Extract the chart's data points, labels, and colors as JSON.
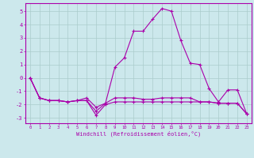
{
  "xlabel": "Windchill (Refroidissement éolien,°C)",
  "background_color": "#cce8ec",
  "grid_color": "#aacccc",
  "line_color": "#aa00aa",
  "x_ticks": [
    0,
    1,
    2,
    3,
    4,
    5,
    6,
    7,
    8,
    9,
    10,
    11,
    12,
    13,
    14,
    15,
    16,
    17,
    18,
    19,
    20,
    21,
    22,
    23
  ],
  "y_ticks": [
    -3,
    -2,
    -1,
    0,
    1,
    2,
    3,
    4,
    5
  ],
  "ylim": [
    -3.4,
    5.6
  ],
  "xlim": [
    -0.5,
    23.5
  ],
  "series": [
    [
      0.0,
      -1.5,
      -1.7,
      -1.7,
      -1.8,
      -1.7,
      -1.7,
      -2.5,
      -1.9,
      0.8,
      1.5,
      3.5,
      3.5,
      4.4,
      5.2,
      5.0,
      2.8,
      1.1,
      1.0,
      -0.8,
      -1.8,
      -0.9,
      -0.9,
      -2.7
    ],
    [
      0.0,
      -1.5,
      -1.7,
      -1.7,
      -1.8,
      -1.7,
      -1.5,
      -2.2,
      -1.9,
      -1.5,
      -1.5,
      -1.5,
      -1.6,
      -1.6,
      -1.5,
      -1.5,
      -1.5,
      -1.5,
      -1.8,
      -1.8,
      -1.9,
      -1.9,
      -1.9,
      -2.7
    ],
    [
      0.0,
      -1.5,
      -1.7,
      -1.7,
      -1.8,
      -1.7,
      -1.7,
      -2.8,
      -2.0,
      -1.8,
      -1.8,
      -1.8,
      -1.8,
      -1.8,
      -1.8,
      -1.8,
      -1.8,
      -1.8,
      -1.8,
      -1.8,
      -1.9,
      -1.9,
      -1.9,
      -2.7
    ]
  ]
}
